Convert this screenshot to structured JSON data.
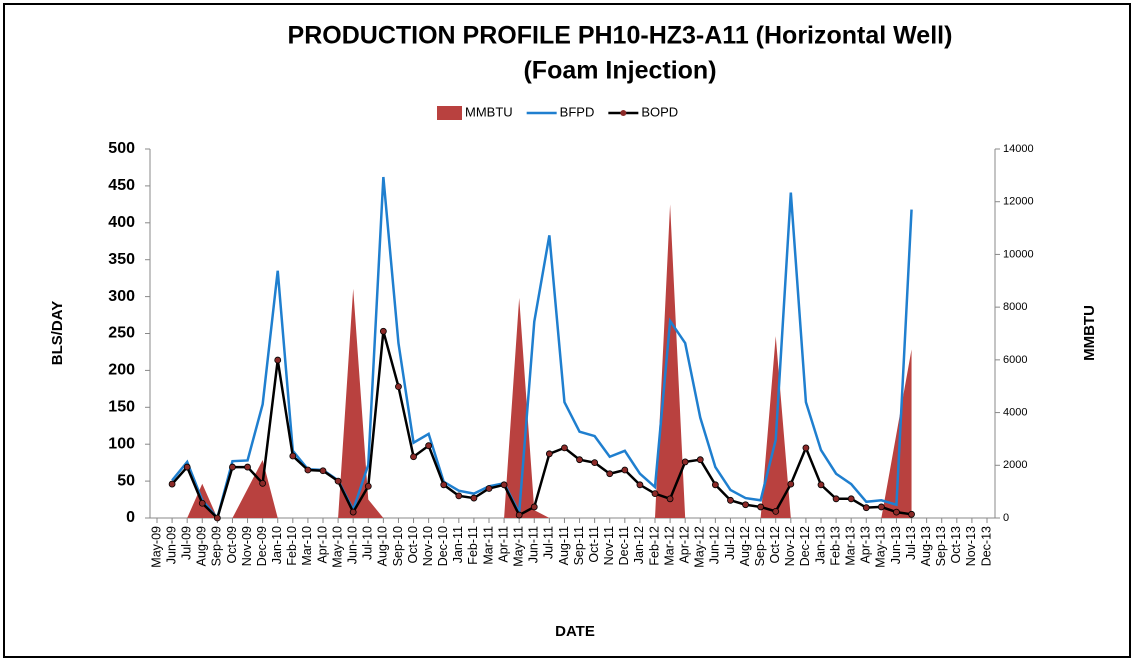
{
  "chart_data": {
    "type": "combo",
    "title": [
      "PRODUCTION PROFILE PH10-HZ3-A11 (Horizontal   Well)",
      "(Foam Injection)"
    ],
    "x_label": "DATE",
    "y_label": "BLS/DAY",
    "y2_label": "MMBTU",
    "categories": [
      "May-09",
      "Jun-09",
      "Jul-09",
      "Aug-09",
      "Sep-09",
      "Oct-09",
      "Nov-09",
      "Dec-09",
      "Jan-10",
      "Feb-10",
      "Mar-10",
      "Apr-10",
      "May-10",
      "Jun-10",
      "Jul-10",
      "Aug-10",
      "Sep-10",
      "Oct-10",
      "Nov-10",
      "Dec-10",
      "Jan-11",
      "Feb-11",
      "Mar-11",
      "Apr-11",
      "May-11",
      "Jun-11",
      "Jul-11",
      "Aug-11",
      "Sep-11",
      "Oct-11",
      "Nov-11",
      "Dec-11",
      "Jan-12",
      "Feb-12",
      "Mar-12",
      "Apr-12",
      "May-12",
      "Jun-12",
      "Jul-12",
      "Aug-12",
      "Sep-12",
      "Oct-12",
      "Nov-12",
      "Dec-12",
      "Jan-13",
      "Feb-13",
      "Mar-13",
      "Apr-13",
      "May-13",
      "Jun-13",
      "Jul-13",
      "Aug-13",
      "Sep-13",
      "Oct-13",
      "Nov-13",
      "Dec-13"
    ],
    "series": [
      {
        "name": "MMBTU",
        "kind": "area",
        "axis": "y2",
        "color": "#b9413f",
        "values": [
          null,
          0,
          0,
          1300,
          0,
          0,
          1100,
          2200,
          0,
          0,
          0,
          0,
          0,
          8700,
          700,
          0,
          0,
          0,
          0,
          0,
          0,
          0,
          0,
          0,
          8350,
          300,
          0,
          0,
          0,
          0,
          0,
          0,
          0,
          0,
          11900,
          0,
          0,
          0,
          0,
          0,
          0,
          6900,
          0,
          0,
          0,
          0,
          0,
          0,
          0,
          3200,
          6400,
          null,
          null,
          null,
          null,
          null
        ]
      },
      {
        "name": "BFPD",
        "kind": "line",
        "color": "#1f7fcf",
        "values": [
          null,
          51,
          76,
          24,
          0,
          77,
          78,
          154,
          335,
          91,
          66,
          65,
          51,
          11,
          72,
          462,
          237,
          102,
          114,
          49,
          37,
          33,
          43,
          47,
          7,
          266,
          383,
          157,
          117,
          111,
          83,
          91,
          60,
          42,
          267,
          237,
          136,
          69,
          38,
          27,
          24,
          106,
          441,
          157,
          92,
          60,
          46,
          22,
          24,
          18,
          418,
          null,
          null,
          null,
          null,
          null
        ]
      },
      {
        "name": "BOPD",
        "kind": "line-marker",
        "color": "#000000",
        "marker_color": "#8b2a28",
        "values": [
          null,
          46,
          69,
          20,
          0,
          69,
          69,
          47,
          214,
          84,
          65,
          64,
          50,
          8,
          43,
          253,
          178,
          83,
          98,
          45,
          30,
          27,
          40,
          45,
          4,
          15,
          87,
          95,
          79,
          75,
          60,
          65,
          45,
          33,
          26,
          76,
          79,
          45,
          24,
          18,
          15,
          9,
          46,
          95,
          45,
          26,
          26,
          14,
          15,
          8,
          5,
          null,
          null,
          null,
          null,
          null
        ]
      }
    ],
    "ylim": [
      0,
      500
    ],
    "yticks": [
      0,
      50,
      100,
      150,
      200,
      250,
      300,
      350,
      400,
      450,
      500
    ],
    "y2lim": [
      0,
      14000
    ],
    "y2ticks": [
      0,
      2000,
      4000,
      6000,
      8000,
      10000,
      12000,
      14000
    ],
    "legend": "top",
    "grid": false
  }
}
